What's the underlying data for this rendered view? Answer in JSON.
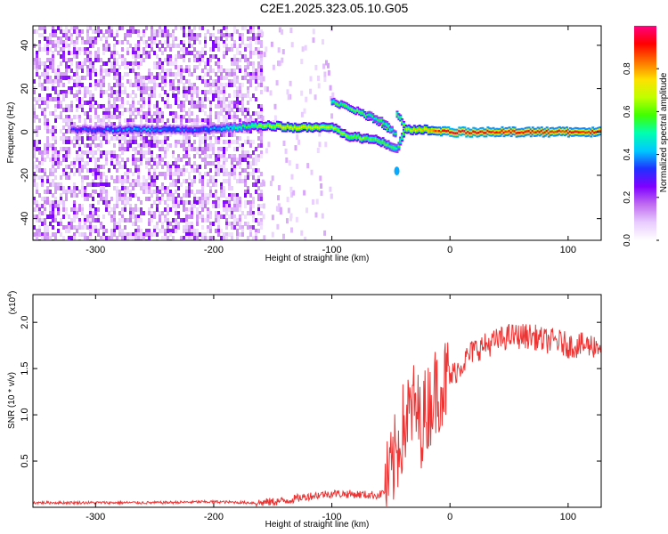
{
  "figure_title": "C2E1.2025.323.05.10.G05",
  "chart_data": [
    {
      "type": "heatmap",
      "name": "spectrogram",
      "xlabel": "Height of straight line (km)",
      "ylabel": "Frequency (Hz)",
      "xlim": [
        -353,
        128
      ],
      "ylim": [
        -50,
        49
      ],
      "xticks": [
        -300,
        -200,
        -100,
        0,
        100
      ],
      "yticks": [
        -40,
        -20,
        0,
        20,
        40
      ],
      "colorbar": {
        "label": "Normalized spectral amplitude",
        "range": [
          0,
          1
        ],
        "ticks": [
          "0.0",
          "0.2",
          "0.4",
          "0.6",
          "0.8"
        ],
        "colormap": [
          "#ffffff",
          "#e8ccff",
          "#c06cf0",
          "#8000ff",
          "#2030ff",
          "#00c8ff",
          "#00ffb0",
          "#40ff00",
          "#c0ff00",
          "#ffe000",
          "#ff7000",
          "#ff0000",
          "#ff0080"
        ]
      },
      "features": {
        "noise_region_x": [
          -353,
          -160
        ],
        "main_track": [
          {
            "x": -320,
            "y": 1,
            "a": 0.25
          },
          {
            "x": -300,
            "y": 1,
            "a": 0.3
          },
          {
            "x": -260,
            "y": 1,
            "a": 0.35
          },
          {
            "x": -210,
            "y": 1,
            "a": 0.3
          },
          {
            "x": -160,
            "y": 3,
            "a": 0.55
          },
          {
            "x": -130,
            "y": 2,
            "a": 0.7
          },
          {
            "x": -100,
            "y": 2,
            "a": 0.6
          },
          {
            "x": -85,
            "y": -2,
            "a": 0.55
          },
          {
            "x": -60,
            "y": -4,
            "a": 0.55
          },
          {
            "x": -45,
            "y": -8,
            "a": 0.45
          },
          {
            "x": -38,
            "y": 1,
            "a": 0.6
          },
          {
            "x": -20,
            "y": 1,
            "a": 0.75
          },
          {
            "x": 0,
            "y": 0,
            "a": 0.9
          },
          {
            "x": 50,
            "y": 0,
            "a": 0.85
          },
          {
            "x": 100,
            "y": 0,
            "a": 0.85
          },
          {
            "x": 128,
            "y": 0,
            "a": 0.85
          }
        ],
        "upper_branch": [
          {
            "x": -100,
            "y": 14,
            "a": 0.5
          },
          {
            "x": -80,
            "y": 10,
            "a": 0.55
          },
          {
            "x": -65,
            "y": 6,
            "a": 0.55
          },
          {
            "x": -50,
            "y": 1,
            "a": 0.55
          }
        ],
        "secondary_branch": [
          {
            "x": -70,
            "y": 8,
            "a": 0.45
          },
          {
            "x": -55,
            "y": 4,
            "a": 0.5
          },
          {
            "x": -45,
            "y": -2,
            "a": 0.45
          }
        ],
        "short_branch": [
          {
            "x": -45,
            "y": 8,
            "a": 0.5
          },
          {
            "x": -38,
            "y": 3,
            "a": 0.55
          }
        ],
        "isolated_blob": {
          "x": -45,
          "y": -18,
          "a": 0.4
        }
      }
    },
    {
      "type": "line",
      "name": "snr",
      "xlabel": "Height of straight line (km)",
      "ylabel": "SNR (10 * v/v)",
      "y_multiplier": "(x10",
      "y_multiplier_exp": "4",
      "y_multiplier_close": ")",
      "xlim": [
        -353,
        128
      ],
      "ylim": [
        0,
        2.3
      ],
      "xticks": [
        -300,
        -200,
        -100,
        0,
        100
      ],
      "yticks": [
        0.5,
        1.0,
        1.5,
        2.0
      ],
      "ytick_labels": [
        "0.5",
        "1.0",
        "1.5",
        "2.0"
      ],
      "color": "#ee3333",
      "series": [
        {
          "x": [
            -353,
            -300,
            -250,
            -200,
            -170,
            -160,
            -140,
            -120,
            -100,
            -80,
            -60,
            -55,
            -50,
            -45,
            -40,
            -35,
            -30,
            -25,
            -20,
            -15,
            -10,
            -5,
            0,
            10,
            20,
            30,
            40,
            50,
            60,
            70,
            80,
            90,
            100,
            110,
            120,
            128
          ],
          "y": [
            0.05,
            0.05,
            0.05,
            0.06,
            0.05,
            0.05,
            0.07,
            0.12,
            0.15,
            0.14,
            0.13,
            0.18,
            0.35,
            0.6,
            0.85,
            1.0,
            1.1,
            0.9,
            1.05,
            1.2,
            1.3,
            1.35,
            1.4,
            1.55,
            1.7,
            1.75,
            1.8,
            1.85,
            1.85,
            1.85,
            1.8,
            1.8,
            1.75,
            1.75,
            1.75,
            1.75
          ]
        }
      ]
    }
  ]
}
